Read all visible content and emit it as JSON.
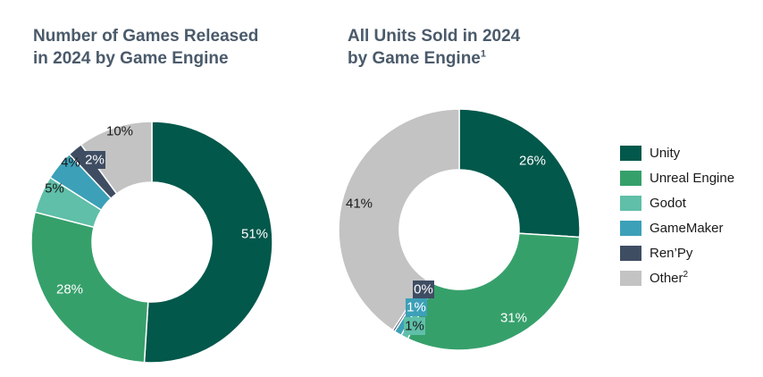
{
  "chart_data": [
    {
      "type": "pie",
      "title_lines": [
        "Number of Games Released",
        "in 2024 by Game Engine"
      ],
      "title_superscript": "",
      "categories": [
        "Unity",
        "Unreal Engine",
        "Godot",
        "GameMaker",
        "Ren’Py",
        "Other"
      ],
      "values": [
        51,
        28,
        5,
        4,
        2,
        10
      ],
      "labels": [
        "51%",
        "28%",
        "5%",
        "4%",
        "2%",
        "10%"
      ],
      "donut": true,
      "start": "12 o'clock",
      "direction": "clockwise"
    },
    {
      "type": "pie",
      "title_lines": [
        "All Units Sold in 2024",
        "by Game Engine"
      ],
      "title_superscript": "1",
      "categories": [
        "Unity",
        "Unreal Engine",
        "Godot",
        "GameMaker",
        "Ren’Py",
        "Other"
      ],
      "values": [
        26,
        31,
        1,
        1,
        0.3,
        40.7
      ],
      "labels": [
        "26%",
        "31%",
        "1%",
        "1%",
        "0%",
        "41%"
      ],
      "donut": true,
      "start": "12 o'clock",
      "direction": "clockwise"
    }
  ],
  "legend": {
    "placement": "right",
    "items": [
      {
        "label": "Unity",
        "sup": ""
      },
      {
        "label": "Unreal Engine",
        "sup": ""
      },
      {
        "label": "Godot",
        "sup": ""
      },
      {
        "label": "GameMaker",
        "sup": ""
      },
      {
        "label": "Ren’Py",
        "sup": ""
      },
      {
        "label": "Other",
        "sup": "2"
      }
    ]
  },
  "colors": {
    "Unity": "#02584b",
    "Unreal Engine": "#36a06b",
    "Godot": "#5fbfa8",
    "GameMaker": "#3ca0b8",
    "Ren’Py": "#3f4d63",
    "Other": "#c3c3c3",
    "title": "#4a5a6a"
  }
}
